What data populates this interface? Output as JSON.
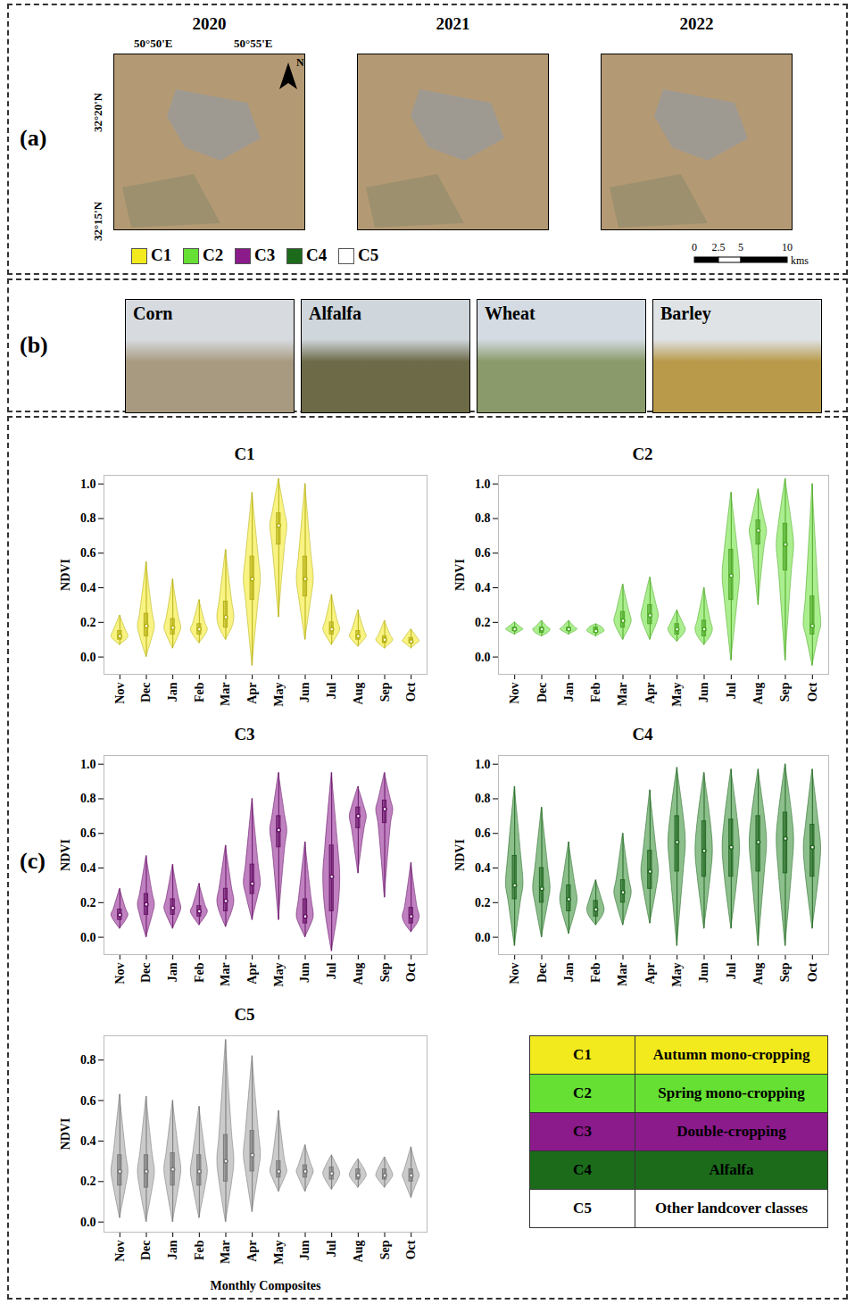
{
  "panel_a": {
    "label": "(a)",
    "years": [
      "2020",
      "2021",
      "2022"
    ],
    "longitudes": [
      "50°50'E",
      "50°55'E"
    ],
    "latitudes": [
      "32°20'N",
      "32°15'N"
    ],
    "north": "N",
    "legend": [
      {
        "name": "C1",
        "color": "#f2ea1c"
      },
      {
        "name": "C2",
        "color": "#66e033"
      },
      {
        "name": "C3",
        "color": "#8b1a8b"
      },
      {
        "name": "C4",
        "color": "#1b6b1b"
      },
      {
        "name": "C5",
        "color": "#ffffff"
      }
    ],
    "scale_bar": {
      "ticks": [
        "0",
        "2.5",
        "5",
        "10"
      ],
      "unit": "kms"
    }
  },
  "panel_b": {
    "label": "(b)",
    "photos": [
      "Corn",
      "Alfalfa",
      "Wheat",
      "Barley"
    ]
  },
  "panel_c": {
    "label": "(c)",
    "legend_table": [
      {
        "class": "C1",
        "name": "Autumn mono-cropping",
        "color": "#f2ea1c"
      },
      {
        "class": "C2",
        "name": "Spring mono-cropping",
        "color": "#66e033"
      },
      {
        "class": "C3",
        "name": "Double-cropping",
        "color": "#8b1a8b"
      },
      {
        "class": "C4",
        "name": "Alfalfa",
        "color": "#1b6b1b"
      },
      {
        "class": "C5",
        "name": "Other landcover classes",
        "color": "#ffffff"
      }
    ]
  },
  "chart_data": [
    {
      "type": "violin",
      "title": "C1",
      "y_label": "NDVI",
      "color": "#f2ea1c",
      "categories": [
        "Nov",
        "Dec",
        "Jan",
        "Feb",
        "Mar",
        "Apr",
        "May",
        "Jun",
        "Jul",
        "Aug",
        "Sep",
        "Oct"
      ],
      "min": [
        0.07,
        0.0,
        0.05,
        0.08,
        0.1,
        -0.05,
        0.23,
        0.1,
        0.07,
        0.06,
        0.05,
        0.05
      ],
      "q1": [
        0.1,
        0.12,
        0.13,
        0.13,
        0.17,
        0.33,
        0.65,
        0.35,
        0.13,
        0.1,
        0.08,
        0.08
      ],
      "median": [
        0.12,
        0.18,
        0.17,
        0.16,
        0.23,
        0.45,
        0.76,
        0.45,
        0.16,
        0.12,
        0.1,
        0.09
      ],
      "q3": [
        0.15,
        0.25,
        0.22,
        0.19,
        0.32,
        0.58,
        0.83,
        0.58,
        0.2,
        0.15,
        0.12,
        0.11
      ],
      "max": [
        0.24,
        0.55,
        0.45,
        0.33,
        0.62,
        0.95,
        1.03,
        1.0,
        0.36,
        0.27,
        0.21,
        0.16
      ],
      "ylim": [
        -0.1,
        1.05
      ],
      "yticks": [
        0,
        0.2,
        0.4,
        0.6,
        0.8,
        1
      ]
    },
    {
      "type": "violin",
      "title": "C2",
      "y_label": "NDVI",
      "color": "#66e033",
      "categories": [
        "Nov",
        "Dec",
        "Jan",
        "Feb",
        "Mar",
        "Apr",
        "May",
        "Jun",
        "Jul",
        "Aug",
        "Sep",
        "Oct"
      ],
      "min": [
        0.13,
        0.12,
        0.13,
        0.12,
        0.1,
        0.1,
        0.09,
        0.07,
        -0.02,
        0.3,
        -0.02,
        -0.05
      ],
      "q1": [
        0.15,
        0.14,
        0.15,
        0.14,
        0.17,
        0.19,
        0.13,
        0.12,
        0.33,
        0.65,
        0.5,
        0.13
      ],
      "median": [
        0.16,
        0.16,
        0.16,
        0.15,
        0.21,
        0.24,
        0.16,
        0.16,
        0.47,
        0.73,
        0.65,
        0.18
      ],
      "q3": [
        0.17,
        0.17,
        0.17,
        0.17,
        0.26,
        0.3,
        0.19,
        0.21,
        0.62,
        0.79,
        0.77,
        0.35
      ],
      "max": [
        0.2,
        0.21,
        0.21,
        0.19,
        0.42,
        0.46,
        0.27,
        0.4,
        0.95,
        0.97,
        1.03,
        1.0
      ],
      "ylim": [
        -0.1,
        1.05
      ],
      "yticks": [
        0,
        0.2,
        0.4,
        0.6,
        0.8,
        1
      ]
    },
    {
      "type": "violin",
      "title": "C3",
      "y_label": "NDVI",
      "color": "#8b1a8b",
      "categories": [
        "Nov",
        "Dec",
        "Jan",
        "Feb",
        "Mar",
        "Apr",
        "May",
        "Jun",
        "Jul",
        "Aug",
        "Sep",
        "Oct"
      ],
      "min": [
        0.05,
        0.0,
        0.05,
        0.07,
        0.06,
        0.1,
        0.1,
        0.0,
        -0.08,
        0.37,
        0.23,
        0.03
      ],
      "q1": [
        0.1,
        0.13,
        0.13,
        0.12,
        0.15,
        0.25,
        0.52,
        0.08,
        0.15,
        0.63,
        0.66,
        0.08
      ],
      "median": [
        0.13,
        0.19,
        0.17,
        0.15,
        0.21,
        0.31,
        0.62,
        0.12,
        0.35,
        0.7,
        0.74,
        0.12
      ],
      "q3": [
        0.16,
        0.25,
        0.22,
        0.18,
        0.28,
        0.42,
        0.7,
        0.22,
        0.53,
        0.75,
        0.79,
        0.17
      ],
      "max": [
        0.28,
        0.47,
        0.42,
        0.31,
        0.53,
        0.8,
        0.95,
        0.55,
        0.95,
        0.87,
        0.95,
        0.43
      ],
      "ylim": [
        -0.1,
        1.05
      ],
      "yticks": [
        0,
        0.2,
        0.4,
        0.6,
        0.8,
        1
      ]
    },
    {
      "type": "violin",
      "title": "C4",
      "y_label": "NDVI",
      "color": "#2e8b2e",
      "categories": [
        "Nov",
        "Dec",
        "Jan",
        "Feb",
        "Mar",
        "Apr",
        "May",
        "Jun",
        "Jul",
        "Aug",
        "Sep",
        "Oct"
      ],
      "min": [
        -0.05,
        0.0,
        0.02,
        0.07,
        0.07,
        0.08,
        -0.05,
        0.05,
        0.05,
        -0.05,
        -0.05,
        0.05
      ],
      "q1": [
        0.22,
        0.2,
        0.15,
        0.12,
        0.2,
        0.28,
        0.38,
        0.35,
        0.35,
        0.38,
        0.37,
        0.35
      ],
      "median": [
        0.3,
        0.28,
        0.22,
        0.16,
        0.26,
        0.38,
        0.55,
        0.5,
        0.52,
        0.55,
        0.57,
        0.52
      ],
      "q3": [
        0.47,
        0.4,
        0.3,
        0.21,
        0.33,
        0.5,
        0.7,
        0.67,
        0.68,
        0.7,
        0.72,
        0.65
      ],
      "max": [
        0.87,
        0.75,
        0.55,
        0.33,
        0.6,
        0.85,
        0.98,
        0.95,
        0.97,
        0.97,
        1.0,
        0.97
      ],
      "ylim": [
        -0.1,
        1.05
      ],
      "yticks": [
        0,
        0.2,
        0.4,
        0.6,
        0.8,
        1
      ]
    },
    {
      "type": "violin",
      "title": "C5",
      "y_label": "NDVI",
      "x_label": "Monthly Composites",
      "color": "#a0a0a0",
      "categories": [
        "Nov",
        "Dec",
        "Jan",
        "Feb",
        "Mar",
        "Apr",
        "May",
        "Jun",
        "Jul",
        "Aug",
        "Sep",
        "Oct"
      ],
      "min": [
        0.02,
        0.0,
        0.0,
        0.02,
        0.0,
        0.05,
        0.15,
        0.15,
        0.16,
        0.17,
        0.17,
        0.12
      ],
      "q1": [
        0.18,
        0.17,
        0.18,
        0.18,
        0.2,
        0.25,
        0.22,
        0.22,
        0.21,
        0.21,
        0.21,
        0.2
      ],
      "median": [
        0.25,
        0.25,
        0.26,
        0.25,
        0.3,
        0.33,
        0.25,
        0.25,
        0.24,
        0.23,
        0.23,
        0.23
      ],
      "q3": [
        0.33,
        0.33,
        0.34,
        0.33,
        0.43,
        0.45,
        0.3,
        0.28,
        0.27,
        0.26,
        0.26,
        0.26
      ],
      "max": [
        0.63,
        0.62,
        0.6,
        0.57,
        0.9,
        0.82,
        0.55,
        0.38,
        0.33,
        0.31,
        0.32,
        0.37
      ],
      "ylim": [
        -0.05,
        0.92
      ],
      "yticks": [
        0,
        0.2,
        0.4,
        0.6,
        0.8
      ]
    }
  ]
}
